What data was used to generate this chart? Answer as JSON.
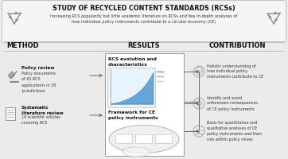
{
  "title": "STUDY OF RECYCLED CONTENT STANDARDS (RCSs)",
  "subtitle": "Increasing RCS popularity but little academic literature on RCSs and few in-depth analyses of\nhow individual policy instruments contribute to a circular economy (CE)",
  "bg_color": "#ebebeb",
  "header_bg": "#f5f5f5",
  "box_bg": "#ffffff",
  "section_method": "METHOD",
  "section_results": "RESULTS",
  "section_contribution": "CONTRIBUTION",
  "method_item1_bold": "Policy review",
  "method_item1_text": "Policy documents\nof 62 RCS\napplications in 30\njurisdictions",
  "method_item2_bold": "Systematic\nliterature review",
  "method_item2_text": "19 scientific articles\ncovering RCS",
  "results_label1": "RCS evolution and\ncharacteristics",
  "results_label2": "Framework for CE\npolicy instruments",
  "contrib1": "Holistic understanding of\nhow individual policy\ninstruments contribute to CE",
  "contrib2": "Identify and avoid\nunforeseen consequences\nof CE policy instruments",
  "contrib3": "Basis for quantitative and\nqualitative analyses of CE\npolicy instruments and their\nrole within policy mixes",
  "arrow_color": "#666666",
  "text_dark": "#111111",
  "text_mid": "#333333",
  "icon_color": "#888888"
}
